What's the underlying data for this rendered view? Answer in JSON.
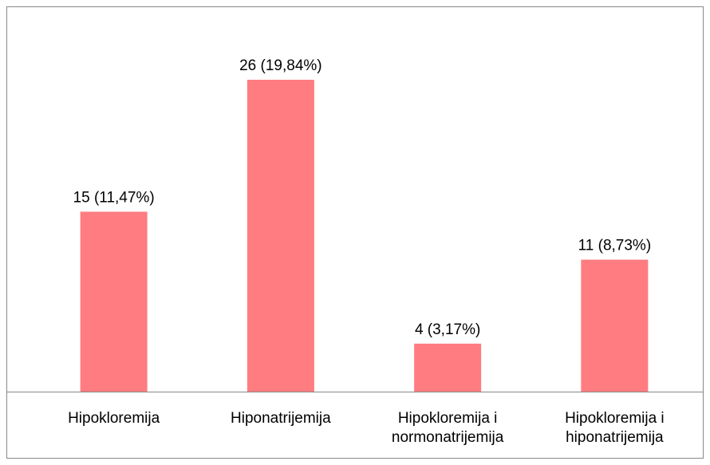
{
  "chart_data": {
    "type": "bar",
    "categories": [
      "Hipokloremija",
      "Hiponatrijemija",
      "Hipokloremija i normonatrijemija",
      "Hipokloremija i hiponatrijemija"
    ],
    "values": [
      15,
      26,
      4,
      11
    ],
    "value_labels": [
      "15 (11,47%)",
      "26 (19,84%)",
      "4 (3,17%)",
      "11 (8,73%)"
    ],
    "color": "#ff7c80"
  }
}
